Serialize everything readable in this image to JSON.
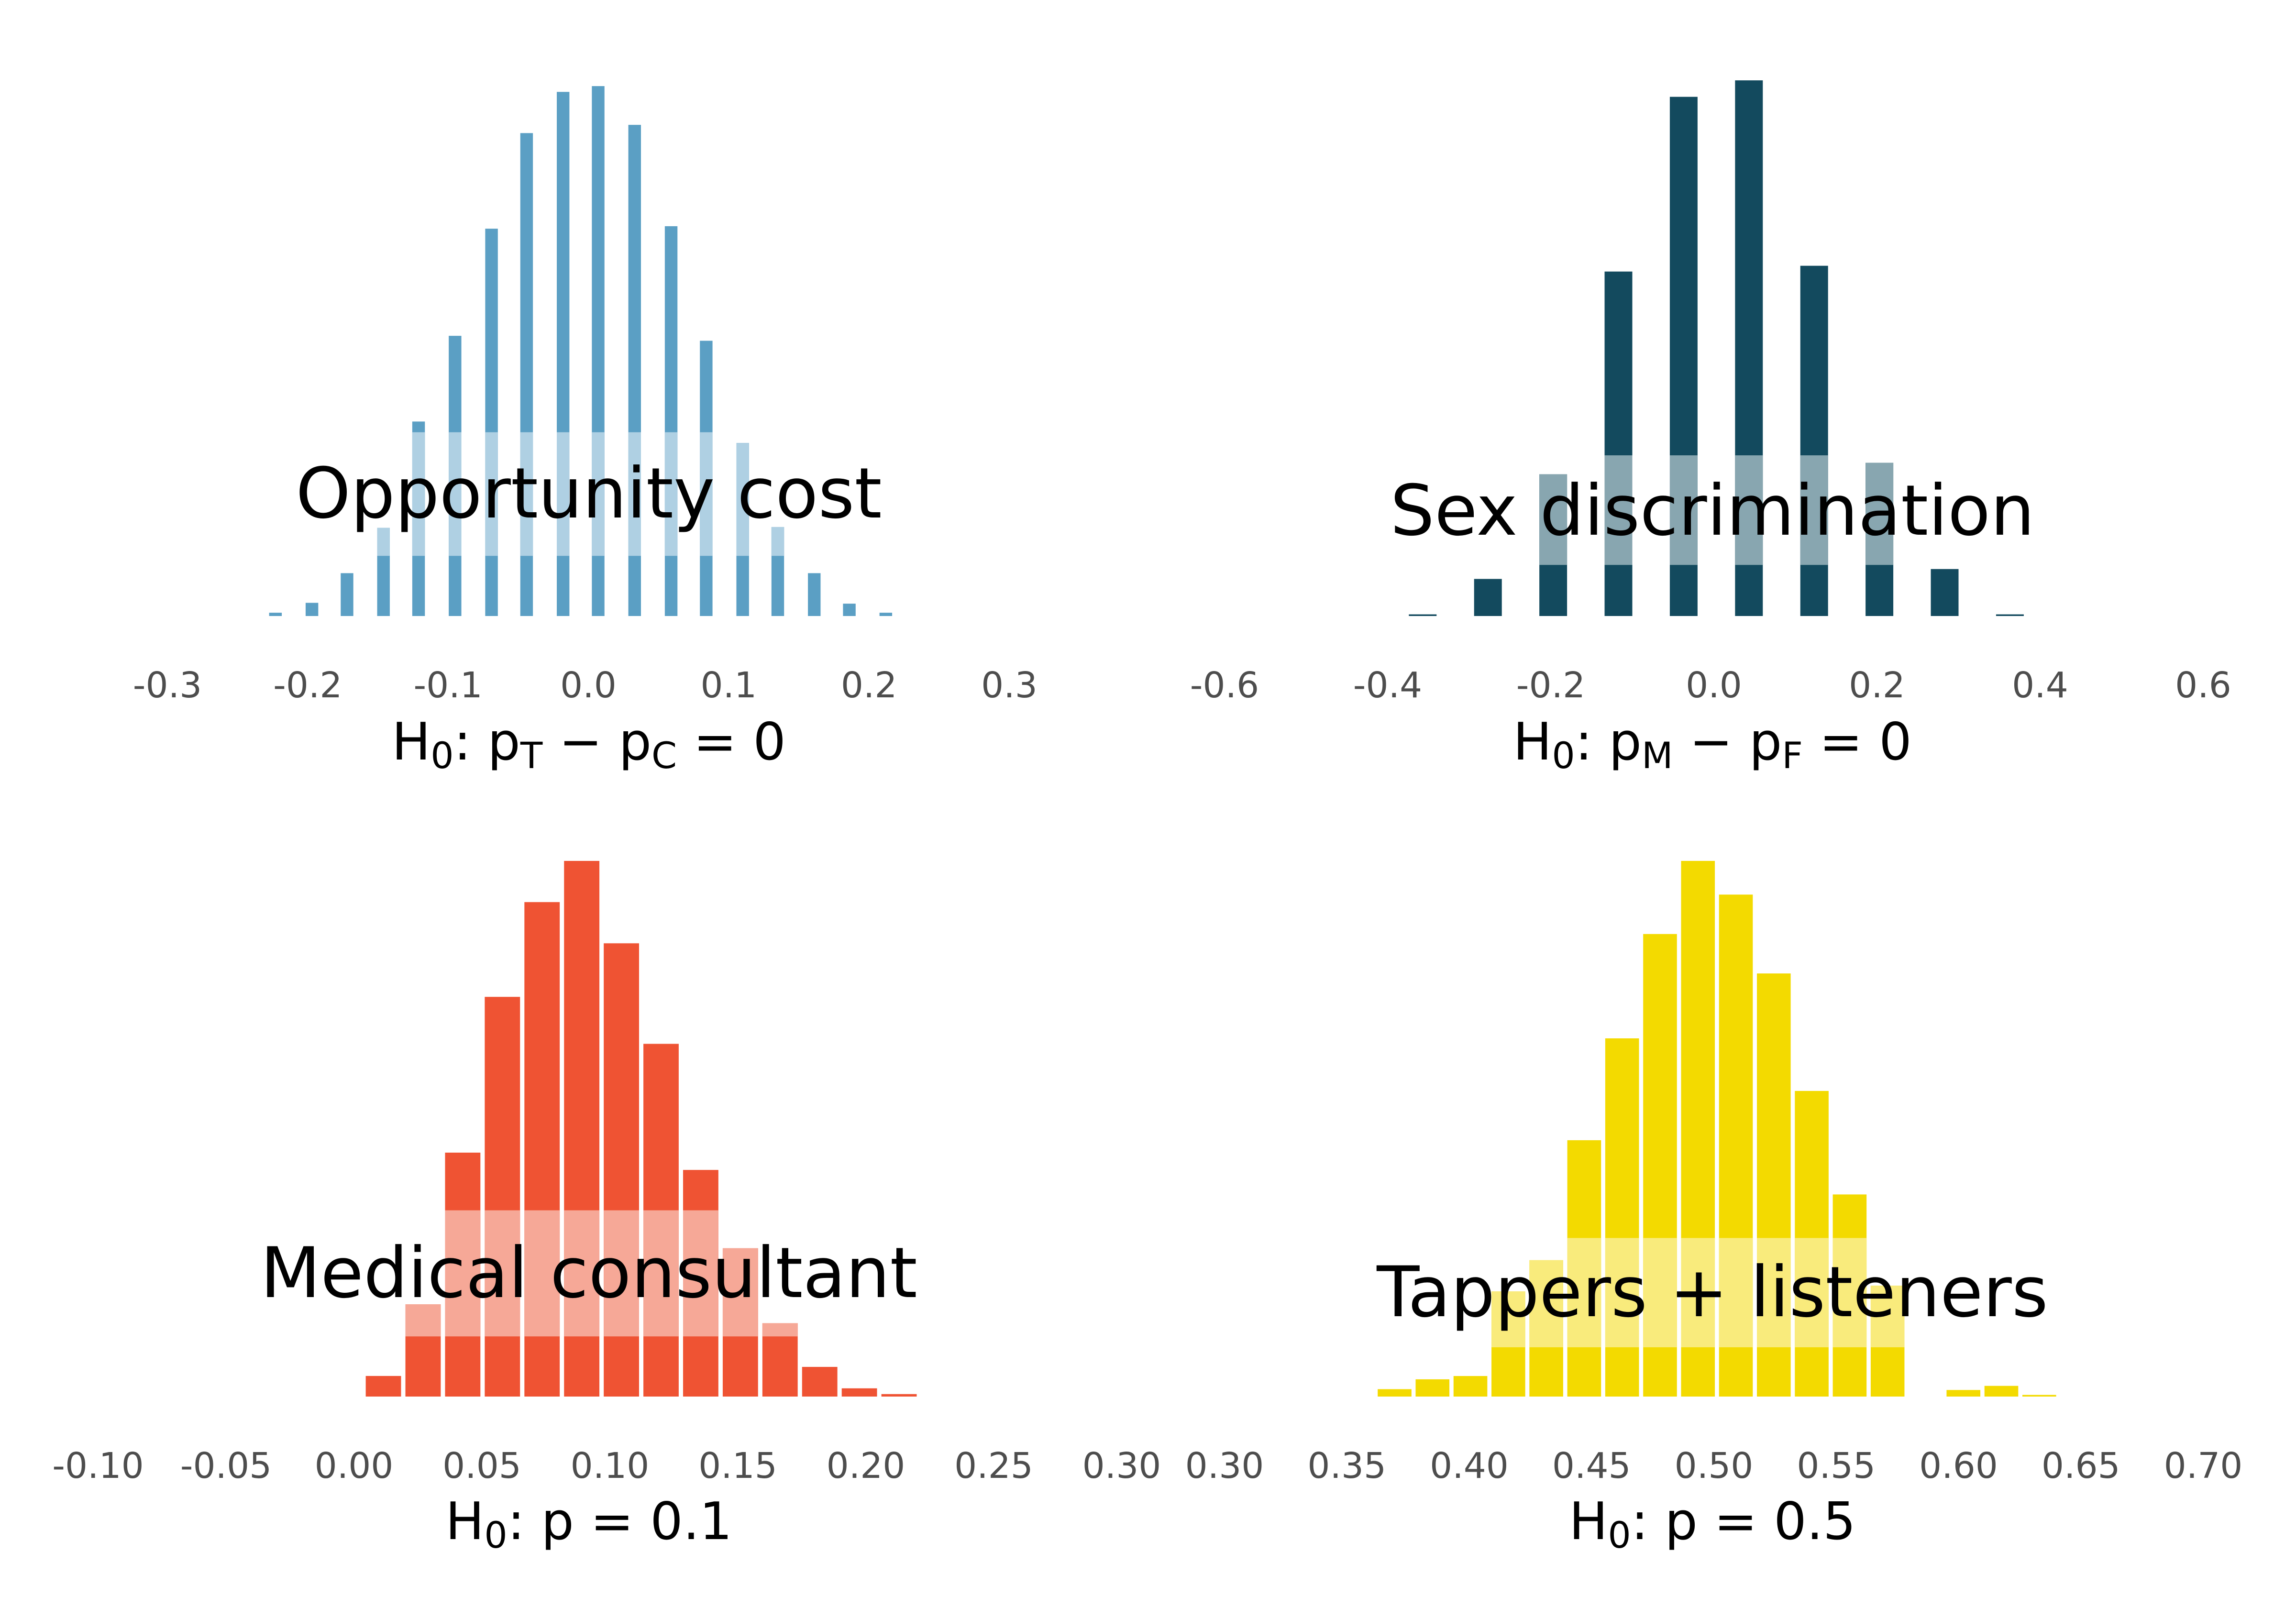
{
  "chart_data": [
    {
      "type": "bar",
      "title": "Opportunity cost",
      "xlabel": {
        "main": "H",
        "sub0": "0",
        "rest1": ":  p",
        "sub1": "T",
        "rest2": " − p",
        "sub2": "C",
        "rest3": " = 0"
      },
      "xlim": [
        -0.3,
        0.3
      ],
      "xticks": [
        "-0.3",
        "-0.2",
        "-0.1",
        "0.0",
        "0.1",
        "0.2",
        "0.3"
      ],
      "xtick_values": [
        -0.3,
        -0.2,
        -0.1,
        0.0,
        0.1,
        0.2,
        0.3
      ],
      "bar_width": 0.009,
      "x": [
        -0.223,
        -0.197,
        -0.172,
        -0.146,
        -0.121,
        -0.095,
        -0.069,
        -0.044,
        -0.018,
        0.007,
        0.033,
        0.059,
        0.084,
        0.11,
        0.135,
        0.161,
        0.186,
        0.212
      ],
      "values": [
        4,
        16,
        52,
        107,
        236,
        340,
        470,
        586,
        636,
        643,
        596,
        473,
        334,
        210,
        108,
        52,
        15,
        4
      ],
      "ymax": 650,
      "band": {
        "from": 73,
        "to": 223
      },
      "colors": {
        "bar": "#5b9fc4",
        "band": "#afd0e3"
      }
    },
    {
      "type": "bar",
      "title": "Sex discrimination",
      "xlabel": {
        "main": "H",
        "sub0": "0",
        "rest1": ":  p",
        "sub1": "M",
        "rest2": " − p",
        "sub2": "F",
        "rest3": " = 0"
      },
      "xlim": [
        -0.6,
        0.6
      ],
      "xticks": [
        "-0.6",
        "-0.4",
        "-0.2",
        "0.0",
        "0.2",
        "0.4",
        "0.6"
      ],
      "xtick_values": [
        -0.6,
        -0.4,
        -0.2,
        0.0,
        0.2,
        0.4,
        0.6
      ],
      "bar_width": 0.034,
      "x": [
        -0.357,
        -0.277,
        -0.197,
        -0.117,
        -0.037,
        0.043,
        0.123,
        0.203,
        0.283,
        0.363
      ],
      "values": [
        2,
        45,
        172,
        418,
        630,
        650,
        425,
        186,
        57,
        2
      ],
      "ymax": 650,
      "band": {
        "from": 62,
        "to": 195
      },
      "colors": {
        "bar": "#134a5e",
        "band": "#88a6b0"
      }
    },
    {
      "type": "bar",
      "title": "Medical consultant",
      "xlabel": {
        "main": "H",
        "sub0": "0",
        "rest1": ":  p = 0.1"
      },
      "xlim": [
        -0.1,
        0.3
      ],
      "xticks": [
        "-0.10",
        "-0.05",
        "0.00",
        "0.05",
        "0.10",
        "0.15",
        "0.20",
        "0.25",
        "0.30"
      ],
      "xtick_values": [
        -0.1,
        -0.05,
        0.0,
        0.05,
        0.1,
        0.15,
        0.2,
        0.25,
        0.3
      ],
      "bar_width": 0.0138,
      "x": [
        0.0115,
        0.027,
        0.0425,
        0.058,
        0.0735,
        0.089,
        0.1045,
        0.12,
        0.1355,
        0.151,
        0.1665,
        0.182,
        0.1975,
        0.213,
        0.2285
      ],
      "values": [
        25,
        112,
        296,
        485,
        600,
        650,
        550,
        428,
        275,
        180,
        89,
        36,
        10,
        3,
        0
      ],
      "ymax": 650,
      "band": {
        "from": 73,
        "to": 226
      },
      "colors": {
        "bar": "#ef5333",
        "band": "#f6a897"
      }
    },
    {
      "type": "bar",
      "title": "Tappers + listeners",
      "xlabel": {
        "main": "H",
        "sub0": "0",
        "rest1": ":  p = 0.5"
      },
      "xlim": [
        0.3,
        0.7
      ],
      "xticks": [
        "0.30",
        "0.35",
        "0.40",
        "0.45",
        "0.50",
        "0.55",
        "0.60",
        "0.65",
        "0.70"
      ],
      "xtick_values": [
        0.3,
        0.35,
        0.4,
        0.45,
        0.5,
        0.55,
        0.6,
        0.65,
        0.7
      ],
      "bar_width": 0.0138,
      "x": [
        0.3695,
        0.385,
        0.4005,
        0.416,
        0.4315,
        0.447,
        0.4625,
        0.478,
        0.4935,
        0.509,
        0.5245,
        0.54,
        0.5555,
        0.571,
        0.5865,
        0.602,
        0.6175,
        0.633
      ],
      "values": [
        9,
        21,
        25,
        128,
        166,
        312,
        436,
        563,
        652,
        611,
        515,
        372,
        246,
        135,
        0,
        8,
        13,
        2
      ],
      "ymax": 652,
      "band": {
        "from": 60,
        "to": 193
      },
      "colors": {
        "bar": "#f3da00",
        "band": "#f9eb7c"
      }
    }
  ]
}
